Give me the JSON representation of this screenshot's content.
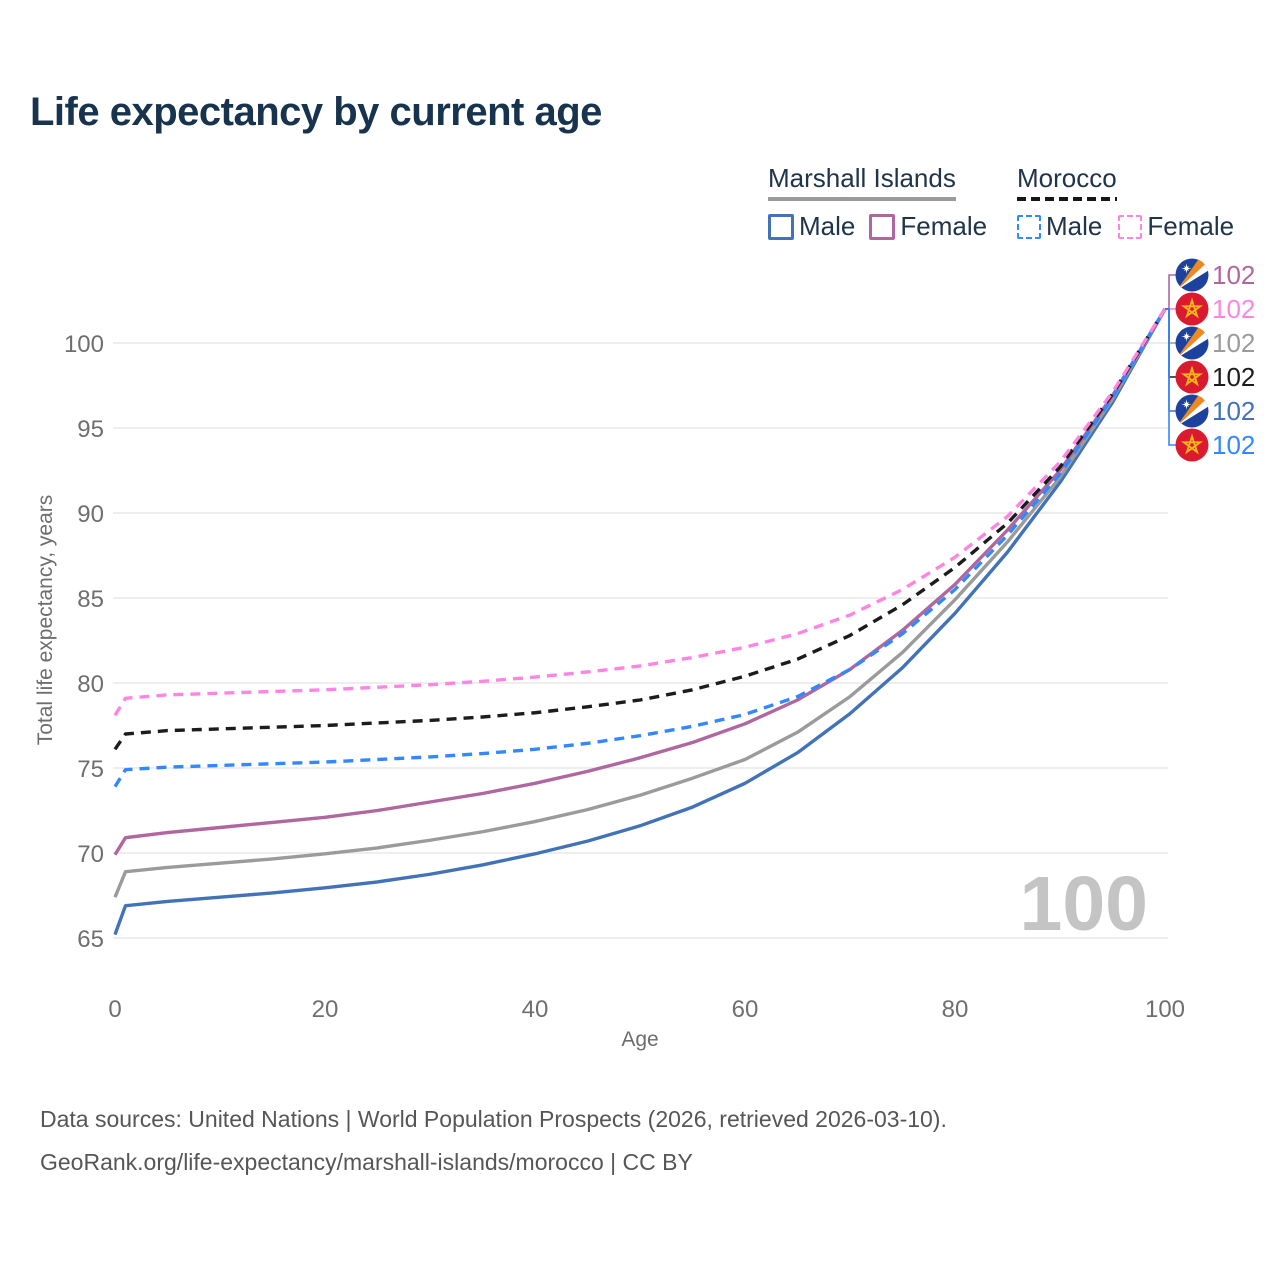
{
  "title": "Life expectancy by current age",
  "watermark": "100",
  "legend": {
    "groups": [
      {
        "name": "Marshall Islands",
        "line_style": "solid",
        "items": [
          {
            "label": "Male",
            "series": "marshall-islands-male"
          },
          {
            "label": "Female",
            "series": "marshall-islands-female"
          }
        ]
      },
      {
        "name": "Morocco",
        "line_style": "dashed",
        "items": [
          {
            "label": "Male",
            "series": "morocco-male"
          },
          {
            "label": "Female",
            "series": "morocco-female"
          }
        ]
      }
    ]
  },
  "chart_data": {
    "type": "line",
    "title": "Life expectancy by current age",
    "xlabel": "Age",
    "ylabel": "Total life expectancy, years",
    "xlim": [
      0,
      100
    ],
    "ylim": [
      65,
      102
    ],
    "xticks": [
      0,
      20,
      40,
      60,
      80,
      100
    ],
    "yticks": [
      65,
      70,
      75,
      80,
      85,
      90,
      95,
      100
    ],
    "grid": "horizontal-only",
    "legend_position": "top-right",
    "x": [
      0,
      1,
      5,
      10,
      15,
      20,
      25,
      30,
      35,
      40,
      45,
      50,
      55,
      60,
      65,
      70,
      75,
      80,
      85,
      90,
      95,
      100
    ],
    "series": [
      {
        "id": "marshall-islands-female",
        "name": "Marshall Islands Female",
        "country": "Marshall Islands",
        "sex": "Female",
        "color": "#b0679f",
        "line_style": "solid",
        "flag": "marshall-islands",
        "end_label": "102",
        "values": [
          69.9,
          70.9,
          71.2,
          71.5,
          71.8,
          72.1,
          72.5,
          73.0,
          73.5,
          74.1,
          74.8,
          75.6,
          76.5,
          77.6,
          79.0,
          80.8,
          83.1,
          85.8,
          89.0,
          92.5,
          96.9,
          102
        ]
      },
      {
        "id": "morocco-female",
        "name": "Morocco Female",
        "country": "Morocco",
        "sex": "Female",
        "color": "#ff85e2",
        "line_style": "dashed",
        "flag": "morocco",
        "end_label": "102",
        "values": [
          78.1,
          79.1,
          79.3,
          79.4,
          79.5,
          79.6,
          79.75,
          79.9,
          80.1,
          80.35,
          80.65,
          81.0,
          81.5,
          82.1,
          82.9,
          84.0,
          85.5,
          87.4,
          89.8,
          93.0,
          97.1,
          102
        ]
      },
      {
        "id": "marshall-islands-overall",
        "name": "Marshall Islands",
        "country": "Marshall Islands",
        "sex": "Both",
        "color": "#9b9b9b",
        "line_style": "solid",
        "flag": "marshall-islands",
        "end_label": "102",
        "values": [
          67.4,
          68.9,
          69.15,
          69.4,
          69.65,
          69.95,
          70.3,
          70.75,
          71.25,
          71.85,
          72.55,
          73.4,
          74.4,
          75.5,
          77.1,
          79.2,
          81.8,
          84.9,
          88.3,
          92.1,
          96.7,
          102
        ]
      },
      {
        "id": "morocco-overall",
        "name": "Morocco",
        "country": "Morocco",
        "sex": "Both",
        "color": "#1c1c1c",
        "line_style": "dashed",
        "flag": "morocco",
        "end_label": "102",
        "values": [
          76.1,
          77.0,
          77.2,
          77.3,
          77.4,
          77.5,
          77.65,
          77.8,
          78.0,
          78.25,
          78.6,
          79.0,
          79.6,
          80.4,
          81.4,
          82.8,
          84.6,
          86.8,
          89.4,
          92.7,
          97.0,
          102
        ]
      },
      {
        "id": "marshall-islands-male",
        "name": "Marshall Islands Male",
        "country": "Marshall Islands",
        "sex": "Male",
        "color": "#4273b8",
        "line_style": "solid",
        "flag": "marshall-islands",
        "end_label": "102",
        "values": [
          65.2,
          66.9,
          67.15,
          67.4,
          67.65,
          67.95,
          68.3,
          68.75,
          69.3,
          69.95,
          70.7,
          71.6,
          72.7,
          74.1,
          75.9,
          78.2,
          80.9,
          84.1,
          87.7,
          91.8,
          96.5,
          102
        ]
      },
      {
        "id": "morocco-male",
        "name": "Morocco Male",
        "country": "Morocco",
        "sex": "Male",
        "color": "#3388ff",
        "line_style": "dashed",
        "flag": "morocco",
        "end_label": "102",
        "values": [
          73.9,
          74.9,
          75.05,
          75.15,
          75.25,
          75.35,
          75.5,
          75.65,
          75.85,
          76.1,
          76.45,
          76.9,
          77.45,
          78.15,
          79.2,
          80.8,
          82.9,
          85.5,
          88.7,
          92.3,
          96.8,
          102
        ]
      }
    ],
    "draw_order": [
      "marshall-islands-male",
      "marshall-islands-overall",
      "marshall-islands-female",
      "morocco-male",
      "morocco-overall",
      "morocco-female"
    ],
    "label_order": [
      "marshall-islands-female",
      "morocco-female",
      "marshall-islands-overall",
      "morocco-overall",
      "marshall-islands-male",
      "morocco-male"
    ]
  },
  "footer": {
    "line1": "Data sources: United Nations | World Population Prospects (2026, retrieved 2026-03-10).",
    "line2": "GeoRank.org/life-expectancy/marshall-islands/morocco | CC BY"
  }
}
